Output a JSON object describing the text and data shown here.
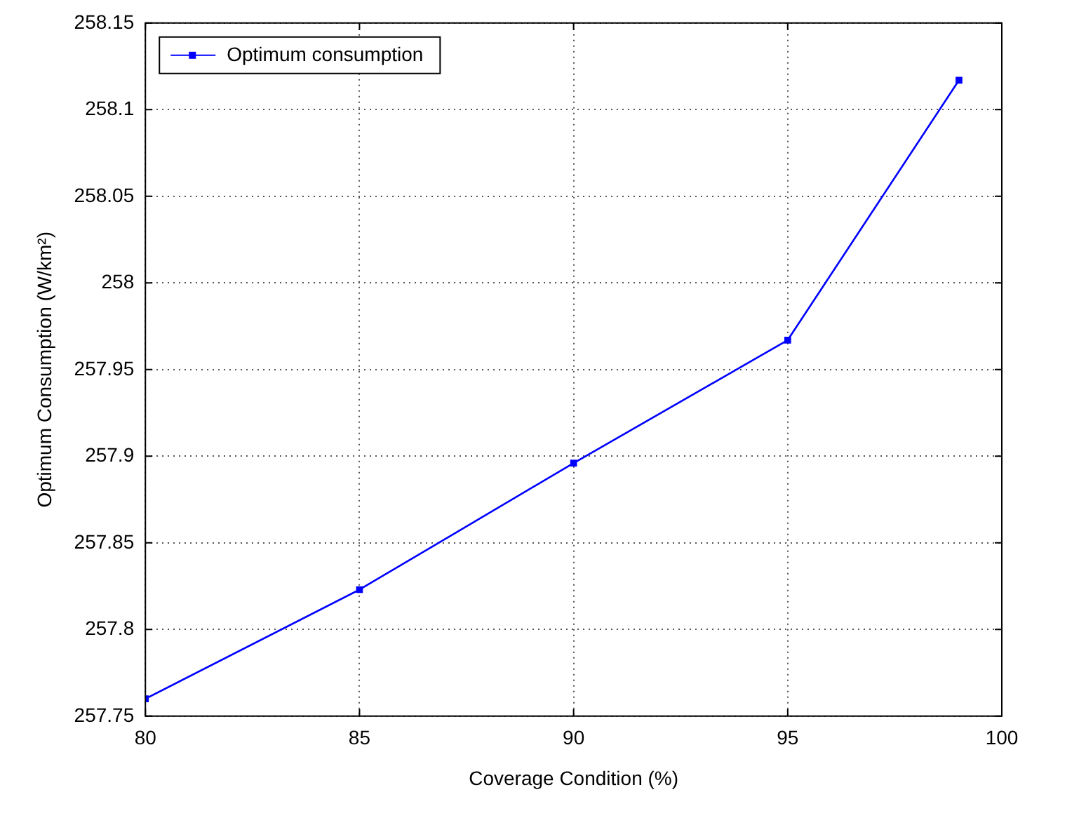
{
  "chart_data": {
    "type": "line",
    "xlabel": "Coverage Condition (%)",
    "ylabel": "Optimum Consumption (W/km²)",
    "x": [
      80,
      85,
      90,
      95,
      99
    ],
    "series": [
      {
        "name": "Optimum consumption",
        "color": "#0000ff",
        "values": [
          257.76,
          257.823,
          257.896,
          257.967,
          258.117
        ]
      }
    ],
    "xlim": [
      80,
      100
    ],
    "xticks": [
      80,
      85,
      90,
      95,
      100
    ],
    "ylim": [
      257.75,
      258.15
    ],
    "yticks": [
      257.75,
      257.8,
      257.85,
      257.9,
      257.95,
      258,
      258.05,
      258.1,
      258.15
    ],
    "grid": true,
    "legend": "top left",
    "marker": "square",
    "line_style": "solid"
  }
}
